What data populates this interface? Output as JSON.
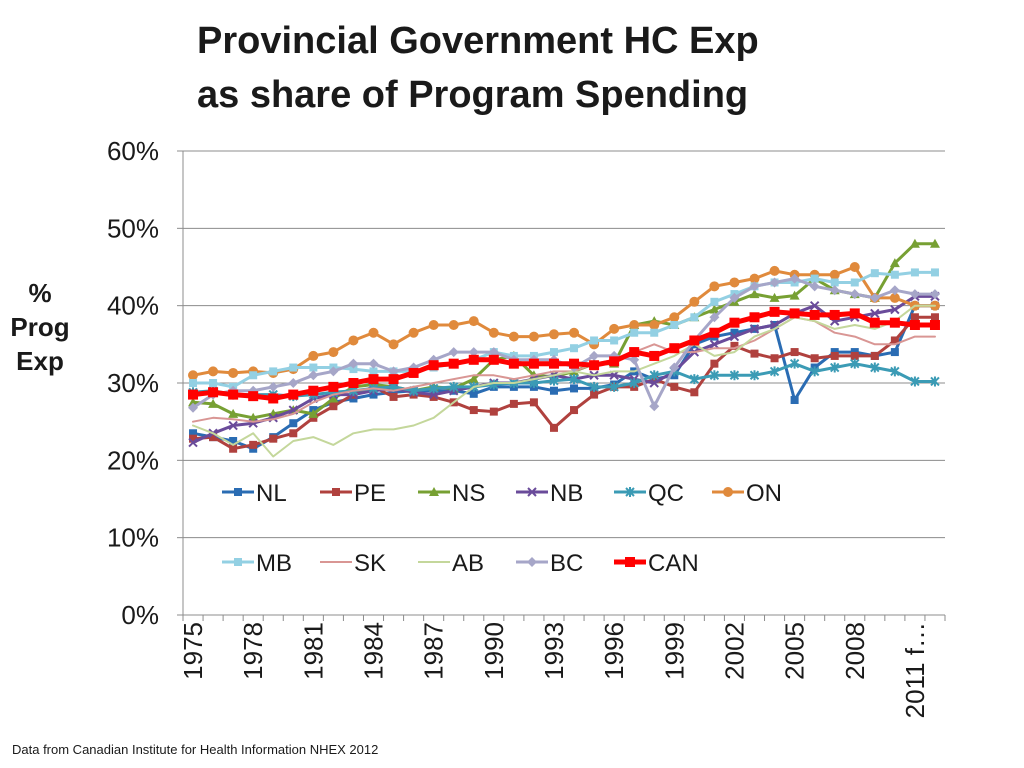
{
  "chart_data": {
    "type": "line",
    "title_lines": [
      "Provincial Government HC Exp",
      "as share of Program Spending"
    ],
    "ylabel_lines": [
      "%",
      "Prog",
      "Exp"
    ],
    "xlabel": "",
    "ylim": [
      0,
      60
    ],
    "yticks": [
      "0%",
      "10%",
      "20%",
      "30%",
      "40%",
      "50%",
      "60%"
    ],
    "ytick_values": [
      0,
      10,
      20,
      30,
      40,
      50,
      60
    ],
    "grid": true,
    "x": [
      1975,
      1976,
      1977,
      1978,
      1979,
      1980,
      1981,
      1982,
      1983,
      1984,
      1985,
      1986,
      1987,
      1988,
      1989,
      1990,
      1991,
      1992,
      1993,
      1994,
      1995,
      1996,
      1997,
      1998,
      1999,
      2000,
      2001,
      2002,
      2003,
      2004,
      2005,
      2006,
      2007,
      2008,
      2009,
      2010,
      2011,
      2012
    ],
    "xtick_labels": [
      "1975",
      "1978",
      "1981",
      "1984",
      "1987",
      "1990",
      "1993",
      "1996",
      "1999",
      "2002",
      "2005",
      "2008",
      "2011 f…"
    ],
    "xtick_indices": [
      0,
      3,
      6,
      9,
      12,
      15,
      18,
      21,
      24,
      27,
      30,
      33,
      36
    ],
    "legend_position": "inside-lower",
    "series": [
      {
        "name": "NL",
        "color": "#2a6cb3",
        "marker": "square",
        "width": 3,
        "values": [
          23.5,
          23,
          22.5,
          21.5,
          23,
          24.8,
          26.5,
          27.5,
          28,
          28.5,
          28.8,
          29,
          29,
          29,
          28.6,
          29.5,
          29.5,
          29.5,
          29,
          29.3,
          29.3,
          29.8,
          31.5,
          30.5,
          31,
          35,
          36,
          36.5,
          37,
          37.5,
          27.8,
          32,
          34,
          34,
          33.5,
          34,
          40,
          40
        ]
      },
      {
        "name": "PE",
        "color": "#b0413e",
        "marker": "square",
        "width": 3,
        "values": [
          22.8,
          23,
          21.5,
          22,
          22.8,
          23.5,
          25.5,
          27,
          28.5,
          29.5,
          28.2,
          28.5,
          28.2,
          27.5,
          26.5,
          26.3,
          27.3,
          27.5,
          24.2,
          26.5,
          28.5,
          29.5,
          29.5,
          30.5,
          29.5,
          28.8,
          32.5,
          34.8,
          33.8,
          33.2,
          34,
          33.2,
          33.5,
          33.5,
          33.5,
          35.5,
          38.5,
          38.5
        ]
      },
      {
        "name": "NS",
        "color": "#77a033",
        "marker": "triangle",
        "width": 3,
        "values": [
          27.5,
          27.3,
          26,
          25.5,
          26,
          26.5,
          26,
          28,
          29.5,
          29.8,
          29.5,
          29,
          29.5,
          29.3,
          30.5,
          33,
          33.5,
          31,
          30.8,
          31.5,
          32.5,
          32.5,
          37.5,
          38,
          37.5,
          38.5,
          39.5,
          40.5,
          41.5,
          41,
          41.3,
          43.5,
          42,
          41.5,
          41,
          45.5,
          48,
          48
        ]
      },
      {
        "name": "NB",
        "color": "#6a4b9a",
        "marker": "x",
        "width": 3,
        "values": [
          22.3,
          23.5,
          24.5,
          24.8,
          25.5,
          26.5,
          28,
          28.5,
          28.5,
          29,
          29.3,
          28.8,
          28.5,
          29,
          29.5,
          30,
          30,
          30.5,
          31,
          30.5,
          31,
          31,
          30.5,
          30,
          31.5,
          34,
          35,
          36,
          37,
          37.5,
          39,
          40,
          38,
          38.5,
          39,
          39.5,
          41.2,
          41.2
        ]
      },
      {
        "name": "QC",
        "color": "#3b9bb5",
        "marker": "star",
        "width": 3,
        "values": [
          28.8,
          29,
          28.5,
          28.5,
          28.5,
          28.3,
          28.5,
          28.8,
          29,
          29.3,
          29.5,
          29,
          29.3,
          29.5,
          29.5,
          29.8,
          30,
          30,
          30.3,
          30.5,
          29.5,
          29.5,
          30,
          31,
          31.5,
          30.5,
          31,
          31,
          31,
          31.5,
          32.5,
          31.5,
          32,
          32.5,
          32,
          31.5,
          30.2,
          30.2
        ]
      },
      {
        "name": "ON",
        "color": "#e08a3c",
        "marker": "circle",
        "width": 3,
        "values": [
          31,
          31.5,
          31.3,
          31.5,
          31.3,
          31.8,
          33.5,
          34,
          35.5,
          36.5,
          35,
          36.5,
          37.5,
          37.5,
          38,
          36.5,
          36,
          36,
          36.3,
          36.5,
          35,
          37,
          37.5,
          37.5,
          38.5,
          40.5,
          42.5,
          43,
          43.5,
          44.5,
          44,
          44,
          44,
          45,
          41,
          41,
          40,
          40
        ]
      },
      {
        "name": "MB",
        "color": "#93d0e3",
        "marker": "square",
        "width": 3,
        "values": [
          30,
          30,
          29.5,
          31,
          31.5,
          32,
          32,
          32,
          31.8,
          31.5,
          31.5,
          31.5,
          32,
          32.5,
          33,
          34,
          33.5,
          33.5,
          34,
          34.5,
          35.5,
          35.5,
          36.5,
          36.5,
          37.5,
          38.5,
          40.5,
          41.5,
          42.5,
          43,
          43,
          43.5,
          43,
          43,
          44.2,
          44,
          44.3,
          44.3
        ]
      },
      {
        "name": "SK",
        "color": "#d99694",
        "marker": "none",
        "width": 2,
        "values": [
          25,
          25.5,
          25.3,
          25,
          25.3,
          26,
          27.5,
          28.5,
          29,
          29.3,
          29,
          29.5,
          30,
          30.5,
          31,
          31,
          30.5,
          31,
          31.5,
          31.5,
          32.5,
          33,
          34,
          35,
          34,
          34,
          34.5,
          34.5,
          35.5,
          37,
          38.5,
          38,
          36.5,
          36,
          35,
          35,
          36,
          36
        ]
      },
      {
        "name": "AB",
        "color": "#c4d79b",
        "marker": "none",
        "width": 2,
        "values": [
          24.5,
          23.5,
          22,
          23.5,
          20.5,
          22.5,
          23,
          22,
          23.5,
          24,
          24,
          24.5,
          25.5,
          27.5,
          29.5,
          30,
          30,
          30.5,
          31,
          31.5,
          31,
          31.5,
          31.5,
          32.5,
          33.5,
          35,
          33.5,
          34,
          36,
          37,
          38.5,
          38,
          37,
          37.5,
          37,
          38,
          40,
          40
        ]
      },
      {
        "name": "BC",
        "color": "#a6a6c8",
        "marker": "diamond",
        "width": 3,
        "values": [
          26.8,
          28.5,
          29,
          29,
          29.5,
          30,
          31,
          31.5,
          32.5,
          32.5,
          31.5,
          32,
          33,
          34,
          34,
          34,
          33,
          33,
          33,
          32,
          33.5,
          33.5,
          33,
          27,
          32,
          35.5,
          38.5,
          41,
          42.5,
          43,
          43.5,
          42.5,
          42,
          41.5,
          41,
          42,
          41.5,
          41.5
        ]
      },
      {
        "name": "CAN",
        "color": "#ff0000",
        "marker": "square",
        "width": 5,
        "values": [
          28.5,
          28.8,
          28.5,
          28.3,
          28,
          28.5,
          29,
          29.5,
          30,
          30.5,
          30.5,
          31.3,
          32.3,
          32.5,
          33,
          33,
          32.5,
          32.5,
          32.5,
          32.5,
          32.3,
          32.8,
          34,
          33.5,
          34.5,
          35.5,
          36.5,
          37.8,
          38.5,
          39.2,
          39,
          38.8,
          38.8,
          39,
          37.8,
          37.8,
          37.5,
          37.5
        ]
      }
    ]
  },
  "footer": {
    "source": "Data from Canadian Institute for Health Information NHEX 2012"
  }
}
